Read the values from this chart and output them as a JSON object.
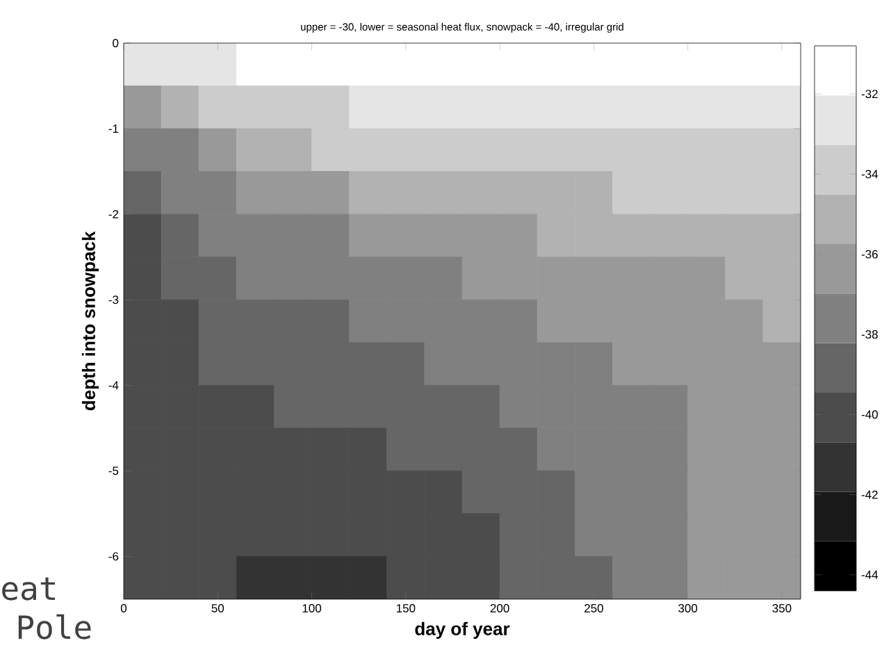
{
  "chart_data": {
    "type": "heatmap",
    "title": "upper = -30, lower = seasonal heat flux, snowpack = -40, irregular grid",
    "xlabel": "day of year",
    "ylabel": "depth into snowpack",
    "annotations": [
      "eat",
      "Pole"
    ],
    "x": [
      10,
      30,
      50,
      70,
      90,
      110,
      130,
      150,
      170,
      190,
      210,
      230,
      250,
      270,
      290,
      310,
      330,
      350
    ],
    "y": [
      -0.25,
      -0.75,
      -1.25,
      -1.75,
      -2.25,
      -2.75,
      -3.25,
      -3.75,
      -4.25,
      -4.75,
      -5.25,
      -5.75,
      -6.25
    ],
    "cells": [
      [
        -32.2,
        -32.2,
        -32.2,
        -31.1,
        -31.1,
        -31.1,
        -31.1,
        -31.1,
        -31.1,
        -31.1,
        -31.1,
        -31.1,
        -31.1,
        -31.1,
        -31.1,
        -31.1,
        -31.1,
        -31.1
      ],
      [
        -36.2,
        -34.9,
        -33.5,
        -33.5,
        -33.5,
        -33.5,
        -32.2,
        -32.2,
        -32.2,
        -32.2,
        -32.2,
        -32.2,
        -32.2,
        -32.2,
        -32.2,
        -32.2,
        -32.2,
        -32.2
      ],
      [
        -37.5,
        -37.5,
        -36.2,
        -34.9,
        -34.9,
        -33.5,
        -33.5,
        -33.5,
        -33.5,
        -33.5,
        -33.5,
        -33.5,
        -33.5,
        -33.5,
        -33.5,
        -33.5,
        -33.5,
        -33.5
      ],
      [
        -38.9,
        -37.5,
        -37.5,
        -36.2,
        -36.2,
        -36.2,
        -34.9,
        -34.9,
        -34.9,
        -34.9,
        -34.9,
        -34.9,
        -34.9,
        -33.5,
        -33.5,
        -33.5,
        -33.5,
        -33.5
      ],
      [
        -40.2,
        -38.9,
        -37.5,
        -37.5,
        -37.5,
        -37.5,
        -36.2,
        -36.2,
        -36.2,
        -36.2,
        -36.2,
        -34.9,
        -34.9,
        -34.9,
        -34.9,
        -34.9,
        -34.9,
        -34.9
      ],
      [
        -40.2,
        -38.9,
        -38.9,
        -37.5,
        -37.5,
        -37.5,
        -37.5,
        -37.5,
        -37.5,
        -36.2,
        -36.2,
        -36.2,
        -36.2,
        -36.2,
        -36.2,
        -36.2,
        -34.9,
        -34.9
      ],
      [
        -40.2,
        -40.2,
        -38.9,
        -38.9,
        -38.9,
        -38.9,
        -37.5,
        -37.5,
        -37.5,
        -37.5,
        -37.5,
        -36.2,
        -36.2,
        -36.2,
        -36.2,
        -36.2,
        -36.2,
        -34.9
      ],
      [
        -40.2,
        -40.2,
        -38.9,
        -38.9,
        -38.9,
        -38.9,
        -38.9,
        -38.9,
        -37.5,
        -37.5,
        -37.5,
        -37.5,
        -37.5,
        -36.2,
        -36.2,
        -36.2,
        -36.2,
        -36.2
      ],
      [
        -40.2,
        -40.2,
        -40.2,
        -40.2,
        -38.9,
        -38.9,
        -38.9,
        -38.9,
        -38.9,
        -38.9,
        -37.5,
        -37.5,
        -37.5,
        -37.5,
        -37.5,
        -36.2,
        -36.2,
        -36.2
      ],
      [
        -40.2,
        -40.2,
        -40.2,
        -40.2,
        -40.2,
        -40.2,
        -40.2,
        -38.9,
        -38.9,
        -38.9,
        -38.9,
        -37.5,
        -37.5,
        -37.5,
        -37.5,
        -36.2,
        -36.2,
        -36.2
      ],
      [
        -40.2,
        -40.2,
        -40.2,
        -40.2,
        -40.2,
        -40.2,
        -40.2,
        -40.2,
        -40.2,
        -38.9,
        -38.9,
        -38.9,
        -37.5,
        -37.5,
        -37.5,
        -36.2,
        -36.2,
        -36.2
      ],
      [
        -40.2,
        -40.2,
        -40.2,
        -40.2,
        -40.2,
        -40.2,
        -40.2,
        -40.2,
        -40.2,
        -40.2,
        -38.9,
        -38.9,
        -37.5,
        -37.5,
        -37.5,
        -36.2,
        -36.2,
        -36.2
      ],
      [
        -40.2,
        -40.2,
        -40.2,
        -41.6,
        -41.6,
        -41.6,
        -41.6,
        -40.2,
        -40.2,
        -40.2,
        -38.9,
        -38.9,
        -38.9,
        -37.5,
        -37.5,
        -36.2,
        -36.2,
        -36.2
      ]
    ],
    "xlim": [
      0,
      360
    ],
    "ylim": [
      -6.5,
      0
    ],
    "xticks": [
      0,
      50,
      100,
      150,
      200,
      250,
      300,
      350
    ],
    "yticks": [
      -6,
      -5,
      -4,
      -3,
      -2,
      -1,
      0
    ],
    "clim": [
      -44.4,
      -30.8
    ],
    "cticks": [
      -44,
      -42,
      -40,
      -38,
      -36,
      -34,
      -32
    ]
  }
}
